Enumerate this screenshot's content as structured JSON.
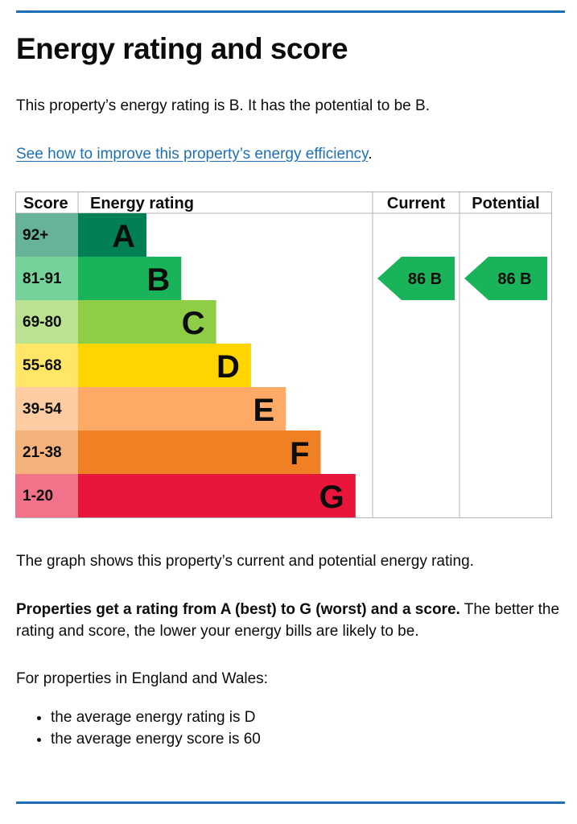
{
  "title": "Energy rating and score",
  "intro": "This property’s energy rating is B. It has the potential to be B.",
  "improve_link": {
    "text": "See how to improve this property’s energy efficiency",
    "suffix": "."
  },
  "chart_data": {
    "type": "table",
    "headers": {
      "score": "Score",
      "rating": "Energy rating",
      "current": "Current",
      "potential": "Potential"
    },
    "bands": [
      {
        "score": "92+",
        "letter": "A",
        "color": "#008054",
        "score_bg": "#66b398"
      },
      {
        "score": "81-91",
        "letter": "B",
        "color": "#19b459",
        "score_bg": "#75d29b"
      },
      {
        "score": "69-80",
        "letter": "C",
        "color": "#8dce46",
        "score_bg": "#bbe290"
      },
      {
        "score": "55-68",
        "letter": "D",
        "color": "#ffd500",
        "score_bg": "#ffe666"
      },
      {
        "score": "39-54",
        "letter": "E",
        "color": "#fcaa65",
        "score_bg": "#fdcca3"
      },
      {
        "score": "21-38",
        "letter": "F",
        "color": "#ef8023",
        "score_bg": "#f5b37b"
      },
      {
        "score": "1-20",
        "letter": "G",
        "color": "#e9153b",
        "score_bg": "#f27389"
      }
    ],
    "current": {
      "score": 86,
      "letter": "B",
      "label": "86  B",
      "color": "#19b459"
    },
    "potential": {
      "score": 86,
      "letter": "B",
      "label": "86  B",
      "color": "#19b459"
    }
  },
  "graph_note": "The graph shows this property’s current and potential energy rating.",
  "properties": {
    "bold": "Properties get a rating from A (best) to G (worst) and a score.",
    "rest": " The better the rating and score, the lower your energy bills are likely to be."
  },
  "for_properties": "For properties in England and Wales:",
  "averages": [
    "the average energy rating is D",
    "the average energy score is 60"
  ]
}
